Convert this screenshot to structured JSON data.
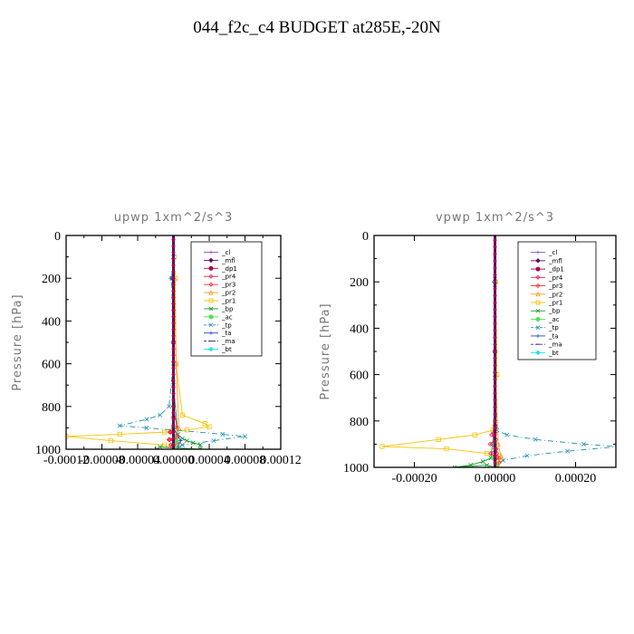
{
  "figure_title": "044_f2c_c4  BUDGET at285E,-20N",
  "legend_entries": [
    {
      "label": "_cl",
      "color": "#9a4fc0",
      "marker": "cross"
    },
    {
      "label": "_mfl",
      "color": "#5a0a6a",
      "marker": "filled-diamond"
    },
    {
      "label": "_dp1",
      "color": "#b0004a",
      "marker": "filled-circle"
    },
    {
      "label": "_pr4",
      "color": "#e0205a",
      "marker": "diamond"
    },
    {
      "label": "_pr3",
      "color": "#ff3030",
      "marker": "diamond"
    },
    {
      "label": "_pr2",
      "color": "#ff9a20",
      "marker": "triangle"
    },
    {
      "label": "_pr1",
      "color": "#f5c400",
      "marker": "square"
    },
    {
      "label": "_bp",
      "color": "#1a9a2a",
      "marker": "x"
    },
    {
      "label": "_ac",
      "color": "#50e050",
      "marker": "filled-circle"
    },
    {
      "label": "_tp",
      "color": "#1e90b0",
      "marker": "x"
    },
    {
      "label": "_ta",
      "color": "#2050d0",
      "marker": "plus"
    },
    {
      "label": "_ma",
      "color": "#303070",
      "marker": "dash"
    },
    {
      "label": "_bt",
      "color": "#20e0e0",
      "marker": "filled-diamond"
    }
  ],
  "chart_data": [
    {
      "type": "line",
      "title": "upwp   1xm^2/s^3",
      "ylabel": "Pressure [hPa]",
      "xlabel": "",
      "xlim": [
        -0.00012,
        0.00012
      ],
      "ylim": [
        1000,
        0
      ],
      "xticks": [
        -0.00012,
        -8e-05,
        -4e-05,
        0.0,
        4e-05,
        8e-05,
        0.00012
      ],
      "xtick_labels": [
        "-0.00012",
        "-0.00008",
        "-0.00004",
        "0.00000",
        "0.00004",
        "0.00008",
        "0.00012"
      ],
      "yticks": [
        0,
        200,
        400,
        600,
        800,
        1000
      ],
      "ytick_labels": [
        "0",
        "200",
        "400",
        "600",
        "800",
        "1000"
      ],
      "legend_position": "top-right",
      "series": [
        {
          "name": "_pr1",
          "x": [
            0,
            1e-06,
            2e-06,
            3e-06,
            1e-05,
            3.5e-05,
            4e-05,
            1.5e-05,
            -1e-05,
            -6e-05,
            -0.00012,
            -7e-05,
            -1e-05,
            0
          ],
          "y": [
            0,
            100,
            200,
            600,
            840,
            880,
            895,
            910,
            920,
            930,
            940,
            960,
            980,
            1000
          ]
        },
        {
          "name": "_tp",
          "x": [
            0,
            0,
            -2e-06,
            0,
            -5e-06,
            -1.5e-05,
            -3e-05,
            -6e-05,
            -3e-05,
            0,
            5.5e-05,
            8e-05,
            4.5e-05,
            1e-05,
            0
          ],
          "y": [
            0,
            100,
            200,
            600,
            800,
            840,
            860,
            890,
            900,
            910,
            930,
            940,
            960,
            980,
            1000
          ]
        },
        {
          "name": "_bp",
          "x": [
            0,
            0,
            5e-06,
            1e-05,
            1.5e-05,
            2.2e-05,
            3e-05,
            3e-05,
            -1.5e-05,
            -2e-05
          ],
          "y": [
            0,
            700,
            930,
            950,
            960,
            970,
            980,
            1000,
            990,
            1000
          ]
        },
        {
          "name": "_pr4",
          "x": [
            0,
            0,
            4e-06,
            -4e-06,
            5e-06,
            -5e-06,
            4e-06,
            -3e-06,
            2e-06,
            0
          ],
          "y": [
            0,
            800,
            900,
            920,
            940,
            955,
            970,
            980,
            990,
            1000
          ]
        },
        {
          "name": "_pr3",
          "x": [
            0,
            0,
            -3e-06,
            3e-06,
            -4e-06,
            4e-06,
            -2e-06,
            0
          ],
          "y": [
            0,
            850,
            920,
            940,
            955,
            970,
            985,
            1000
          ]
        },
        {
          "name": "_pr2",
          "x": [
            0,
            1e-06,
            3e-06,
            6e-06,
            4e-06,
            2e-06,
            0
          ],
          "y": [
            0,
            200,
            600,
            900,
            940,
            970,
            1000
          ]
        },
        {
          "name": "_ta",
          "x": [
            0,
            0,
            -3e-06,
            0,
            0,
            8e-06,
            5e-06,
            0
          ],
          "y": [
            0,
            180,
            200,
            220,
            900,
            960,
            990,
            1000
          ]
        },
        {
          "name": "_ac",
          "x": [
            0,
            0,
            3e-06,
            2e-06,
            0
          ],
          "y": [
            0,
            900,
            960,
            990,
            1000
          ]
        },
        {
          "name": "_cl",
          "x": [
            0,
            0,
            1e-06,
            0
          ],
          "y": [
            0,
            800,
            950,
            1000
          ]
        },
        {
          "name": "_mfl",
          "x": [
            0,
            0,
            0
          ],
          "y": [
            0,
            500,
            1000
          ]
        },
        {
          "name": "_dp1",
          "x": [
            0,
            0,
            0
          ],
          "y": [
            0,
            500,
            1000
          ]
        },
        {
          "name": "_ma",
          "x": [
            0,
            0,
            0
          ],
          "y": [
            0,
            500,
            1000
          ]
        },
        {
          "name": "_bt",
          "x": [
            0,
            0,
            0
          ],
          "y": [
            0,
            500,
            1000
          ]
        }
      ]
    },
    {
      "type": "line",
      "title": "vpwp   1xm^2/s^3",
      "ylabel": "Pressure [hPa]",
      "xlabel": "",
      "xlim": [
        -0.0003,
        0.0003
      ],
      "ylim": [
        1000,
        0
      ],
      "xticks": [
        -0.0002,
        0.0,
        0.0002
      ],
      "xtick_labels": [
        "-0.00020",
        "0.00000",
        "0.00020"
      ],
      "yticks": [
        0,
        200,
        400,
        600,
        800,
        1000
      ],
      "ytick_labels": [
        "0",
        "200",
        "400",
        "600",
        "800",
        "1000"
      ],
      "legend_position": "top-right",
      "series": [
        {
          "name": "_pr1",
          "x": [
            0,
            2e-06,
            5e-06,
            -5e-06,
            -5e-05,
            -0.00014,
            -0.00028,
            -0.00012,
            -2e-05,
            1.5e-05,
            5e-06,
            0
          ],
          "y": [
            0,
            200,
            600,
            840,
            860,
            880,
            910,
            920,
            940,
            965,
            985,
            1000
          ]
        },
        {
          "name": "_tp",
          "x": [
            0,
            0,
            0,
            5e-06,
            3e-05,
            0.0001,
            0.00022,
            0.00031,
            0.00018,
            8e-05,
            2e-05,
            0
          ],
          "y": [
            0,
            200,
            600,
            840,
            860,
            880,
            900,
            910,
            930,
            950,
            970,
            1000
          ]
        },
        {
          "name": "_bp",
          "x": [
            0,
            0,
            -1e-05,
            -3e-05,
            -6e-05,
            -0.0001,
            -2e-05,
            0
          ],
          "y": [
            0,
            800,
            960,
            975,
            990,
            1000,
            990,
            1000
          ]
        },
        {
          "name": "_pr4",
          "x": [
            0,
            0,
            -8e-06,
            2e-06,
            -1.2e-05,
            3e-06,
            -1e-05,
            4e-06,
            0
          ],
          "y": [
            0,
            820,
            860,
            880,
            900,
            920,
            940,
            960,
            1000
          ]
        },
        {
          "name": "_pr3",
          "x": [
            0,
            0,
            5e-06,
            1e-05,
            1e-05,
            5e-06,
            0
          ],
          "y": [
            0,
            850,
            940,
            960,
            980,
            995,
            1000
          ]
        },
        {
          "name": "_pr2",
          "x": [
            0,
            1e-06,
            2e-06,
            8e-06,
            1.5e-05,
            5e-06,
            0
          ],
          "y": [
            0,
            200,
            600,
            900,
            950,
            985,
            1000
          ]
        },
        {
          "name": "_ta",
          "x": [
            0,
            0,
            -3e-06,
            0,
            0
          ],
          "y": [
            0,
            180,
            200,
            220,
            1000
          ]
        },
        {
          "name": "_ac",
          "x": [
            0,
            0,
            -4e-06,
            3e-06,
            0
          ],
          "y": [
            0,
            900,
            960,
            990,
            1000
          ]
        },
        {
          "name": "_cl",
          "x": [
            0,
            0,
            0
          ],
          "y": [
            0,
            500,
            1000
          ]
        },
        {
          "name": "_mfl",
          "x": [
            0,
            0,
            0
          ],
          "y": [
            0,
            500,
            1000
          ]
        },
        {
          "name": "_dp1",
          "x": [
            0,
            0,
            0
          ],
          "y": [
            0,
            500,
            1000
          ]
        },
        {
          "name": "_ma",
          "x": [
            0,
            0,
            0
          ],
          "y": [
            0,
            500,
            1000
          ]
        },
        {
          "name": "_bt",
          "x": [
            0,
            0,
            0
          ],
          "y": [
            0,
            500,
            1000
          ]
        }
      ]
    }
  ]
}
